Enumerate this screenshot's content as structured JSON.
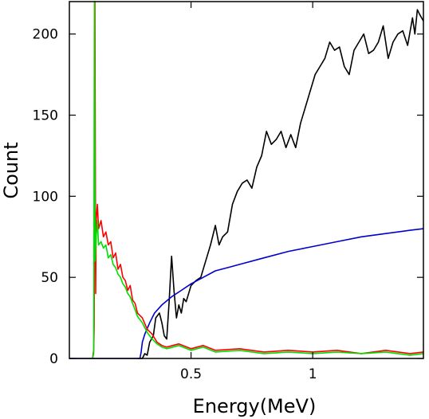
{
  "chart_data": {
    "type": "line",
    "xlabel": "Energy(MeV)",
    "ylabel": "Count",
    "xlim": [
      0.0,
      1.455
    ],
    "ylim": [
      0,
      220
    ],
    "x_ticks": [
      {
        "value": 0.5,
        "label": "0.5"
      },
      {
        "value": 1.0,
        "label": "1"
      }
    ],
    "y_ticks": [
      {
        "value": 0,
        "label": "0"
      },
      {
        "value": 50,
        "label": "50"
      },
      {
        "value": 100,
        "label": "100"
      },
      {
        "value": 150,
        "label": "150"
      },
      {
        "value": 200,
        "label": "200"
      }
    ],
    "grid": false,
    "series": [
      {
        "color": "#000000",
        "points": [
          [
            0.28,
            0
          ],
          [
            0.3,
            0
          ],
          [
            0.31,
            3
          ],
          [
            0.32,
            2
          ],
          [
            0.33,
            10
          ],
          [
            0.345,
            14
          ],
          [
            0.355,
            25
          ],
          [
            0.37,
            28
          ],
          [
            0.38,
            22
          ],
          [
            0.39,
            14
          ],
          [
            0.4,
            12
          ],
          [
            0.41,
            35
          ],
          [
            0.42,
            63
          ],
          [
            0.43,
            42
          ],
          [
            0.44,
            25
          ],
          [
            0.45,
            33
          ],
          [
            0.46,
            28
          ],
          [
            0.47,
            37
          ],
          [
            0.48,
            35
          ],
          [
            0.5,
            45
          ],
          [
            0.52,
            48
          ],
          [
            0.54,
            50
          ],
          [
            0.56,
            60
          ],
          [
            0.58,
            70
          ],
          [
            0.6,
            82
          ],
          [
            0.615,
            70
          ],
          [
            0.63,
            75
          ],
          [
            0.65,
            78
          ],
          [
            0.67,
            95
          ],
          [
            0.69,
            103
          ],
          [
            0.71,
            108
          ],
          [
            0.73,
            110
          ],
          [
            0.75,
            105
          ],
          [
            0.77,
            118
          ],
          [
            0.79,
            125
          ],
          [
            0.81,
            140
          ],
          [
            0.83,
            132
          ],
          [
            0.85,
            135
          ],
          [
            0.87,
            140
          ],
          [
            0.89,
            130
          ],
          [
            0.91,
            138
          ],
          [
            0.93,
            130
          ],
          [
            0.95,
            145
          ],
          [
            0.97,
            155
          ],
          [
            0.99,
            165
          ],
          [
            1.01,
            175
          ],
          [
            1.03,
            180
          ],
          [
            1.05,
            185
          ],
          [
            1.07,
            195
          ],
          [
            1.09,
            190
          ],
          [
            1.11,
            192
          ],
          [
            1.13,
            180
          ],
          [
            1.15,
            175
          ],
          [
            1.17,
            190
          ],
          [
            1.19,
            195
          ],
          [
            1.21,
            200
          ],
          [
            1.23,
            188
          ],
          [
            1.25,
            190
          ],
          [
            1.27,
            195
          ],
          [
            1.29,
            205
          ],
          [
            1.31,
            185
          ],
          [
            1.33,
            195
          ],
          [
            1.35,
            200
          ],
          [
            1.37,
            202
          ],
          [
            1.39,
            193
          ],
          [
            1.41,
            210
          ],
          [
            1.42,
            200
          ],
          [
            1.43,
            215
          ],
          [
            1.44,
            212
          ],
          [
            1.455,
            208
          ]
        ]
      },
      {
        "color": "#0000cc",
        "points": [
          [
            0.0,
            0
          ],
          [
            0.29,
            0
          ],
          [
            0.295,
            4
          ],
          [
            0.3,
            10
          ],
          [
            0.31,
            15
          ],
          [
            0.33,
            22
          ],
          [
            0.35,
            28
          ],
          [
            0.38,
            33
          ],
          [
            0.42,
            38
          ],
          [
            0.46,
            42
          ],
          [
            0.5,
            46
          ],
          [
            0.55,
            50
          ],
          [
            0.6,
            54
          ],
          [
            0.65,
            56
          ],
          [
            0.7,
            58
          ],
          [
            0.8,
            62
          ],
          [
            0.9,
            66
          ],
          [
            1.0,
            69
          ],
          [
            1.1,
            72
          ],
          [
            1.2,
            75
          ],
          [
            1.3,
            77
          ],
          [
            1.4,
            79
          ],
          [
            1.455,
            80
          ]
        ]
      },
      {
        "color": "#ff0000",
        "points": [
          [
            0.095,
            0
          ],
          [
            0.1,
            5
          ],
          [
            0.102,
            20
          ],
          [
            0.105,
            220
          ],
          [
            0.108,
            40
          ],
          [
            0.11,
            85
          ],
          [
            0.115,
            95
          ],
          [
            0.12,
            80
          ],
          [
            0.13,
            85
          ],
          [
            0.14,
            75
          ],
          [
            0.15,
            78
          ],
          [
            0.16,
            70
          ],
          [
            0.17,
            72
          ],
          [
            0.18,
            62
          ],
          [
            0.19,
            65
          ],
          [
            0.2,
            55
          ],
          [
            0.21,
            58
          ],
          [
            0.22,
            50
          ],
          [
            0.23,
            48
          ],
          [
            0.24,
            42
          ],
          [
            0.25,
            45
          ],
          [
            0.26,
            36
          ],
          [
            0.27,
            34
          ],
          [
            0.28,
            28
          ],
          [
            0.3,
            25
          ],
          [
            0.32,
            18
          ],
          [
            0.34,
            15
          ],
          [
            0.36,
            10
          ],
          [
            0.38,
            8
          ],
          [
            0.4,
            7
          ],
          [
            0.45,
            9
          ],
          [
            0.5,
            6
          ],
          [
            0.55,
            8
          ],
          [
            0.6,
            5
          ],
          [
            0.7,
            6
          ],
          [
            0.8,
            4
          ],
          [
            0.9,
            5
          ],
          [
            1.0,
            4
          ],
          [
            1.1,
            5
          ],
          [
            1.2,
            3
          ],
          [
            1.3,
            5
          ],
          [
            1.4,
            3
          ],
          [
            1.455,
            4
          ]
        ]
      },
      {
        "color": "#00dd00",
        "points": [
          [
            0.095,
            0
          ],
          [
            0.1,
            3
          ],
          [
            0.103,
            220
          ],
          [
            0.106,
            60
          ],
          [
            0.11,
            75
          ],
          [
            0.115,
            85
          ],
          [
            0.12,
            70
          ],
          [
            0.13,
            72
          ],
          [
            0.14,
            68
          ],
          [
            0.15,
            70
          ],
          [
            0.16,
            62
          ],
          [
            0.17,
            64
          ],
          [
            0.18,
            58
          ],
          [
            0.19,
            56
          ],
          [
            0.2,
            52
          ],
          [
            0.21,
            50
          ],
          [
            0.22,
            46
          ],
          [
            0.23,
            44
          ],
          [
            0.24,
            40
          ],
          [
            0.25,
            38
          ],
          [
            0.26,
            34
          ],
          [
            0.27,
            30
          ],
          [
            0.28,
            26
          ],
          [
            0.3,
            22
          ],
          [
            0.32,
            16
          ],
          [
            0.34,
            12
          ],
          [
            0.36,
            9
          ],
          [
            0.38,
            7
          ],
          [
            0.4,
            6
          ],
          [
            0.45,
            8
          ],
          [
            0.5,
            5
          ],
          [
            0.55,
            7
          ],
          [
            0.6,
            4
          ],
          [
            0.7,
            5
          ],
          [
            0.8,
            3
          ],
          [
            0.9,
            4
          ],
          [
            1.0,
            3
          ],
          [
            1.1,
            4
          ],
          [
            1.2,
            3
          ],
          [
            1.3,
            4
          ],
          [
            1.4,
            2
          ],
          [
            1.455,
            3
          ]
        ]
      }
    ]
  }
}
